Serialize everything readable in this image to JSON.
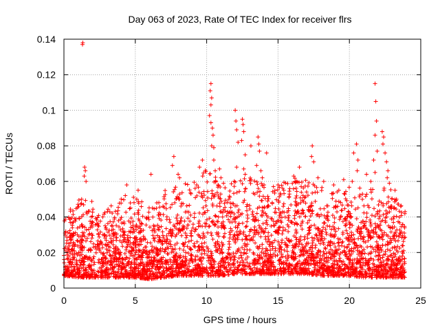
{
  "chart_data": {
    "type": "scatter",
    "title": "Day 063 of 2023, Rate Of TEC Index for receiver flrs",
    "xlabel": "GPS time / hours",
    "ylabel": "ROTI / TECUs",
    "xlim": [
      0,
      25
    ],
    "ylim": [
      0,
      0.14
    ],
    "xticks": [
      0,
      5,
      10,
      15,
      20,
      25
    ],
    "xtick_labels": [
      "0",
      "5",
      "10",
      "15",
      "20",
      "25"
    ],
    "yticks": [
      0,
      0.02,
      0.04,
      0.06,
      0.08,
      0.1,
      0.12,
      0.14
    ],
    "ytick_labels": [
      "0",
      "0.02",
      "0.04",
      "0.06",
      "0.08",
      "0.1",
      "0.12",
      "0.14"
    ],
    "grid": true,
    "marker": "+",
    "color": "#ff0000",
    "series": [
      {
        "name": "ROTI",
        "points": [
          [
            1.3,
            0.137
          ],
          [
            1.32,
            0.138
          ],
          [
            1.45,
            0.068
          ],
          [
            1.5,
            0.066
          ],
          [
            1.42,
            0.063
          ],
          [
            1.55,
            0.06
          ],
          [
            4.4,
            0.058
          ],
          [
            4.3,
            0.052
          ],
          [
            5.2,
            0.055
          ],
          [
            5.1,
            0.05
          ],
          [
            6.1,
            0.064
          ],
          [
            6.2,
            0.045
          ],
          [
            7.7,
            0.074
          ],
          [
            7.6,
            0.069
          ],
          [
            8.0,
            0.064
          ],
          [
            8.1,
            0.062
          ],
          [
            9.5,
            0.068
          ],
          [
            9.7,
            0.072
          ],
          [
            9.3,
            0.058
          ],
          [
            10.3,
            0.115
          ],
          [
            10.25,
            0.111
          ],
          [
            10.35,
            0.107
          ],
          [
            10.3,
            0.103
          ],
          [
            10.2,
            0.097
          ],
          [
            10.3,
            0.093
          ],
          [
            10.4,
            0.09
          ],
          [
            10.45,
            0.086
          ],
          [
            10.35,
            0.08
          ],
          [
            10.5,
            0.079
          ],
          [
            10.5,
            0.072
          ],
          [
            10.6,
            0.066
          ],
          [
            10.9,
            0.067
          ],
          [
            11.0,
            0.062
          ],
          [
            10.8,
            0.058
          ],
          [
            12.0,
            0.1
          ],
          [
            12.05,
            0.094
          ],
          [
            12.1,
            0.089
          ],
          [
            12.2,
            0.082
          ],
          [
            12.5,
            0.095
          ],
          [
            12.55,
            0.092
          ],
          [
            12.6,
            0.088
          ],
          [
            12.45,
            0.083
          ],
          [
            12.7,
            0.075
          ],
          [
            12.1,
            0.068
          ],
          [
            12.6,
            0.067
          ],
          [
            12.7,
            0.064
          ],
          [
            13.1,
            0.08
          ],
          [
            13.6,
            0.085
          ],
          [
            13.65,
            0.081
          ],
          [
            13.7,
            0.077
          ],
          [
            13.5,
            0.069
          ],
          [
            13.8,
            0.066
          ],
          [
            14.2,
            0.076
          ],
          [
            13.9,
            0.062
          ],
          [
            15.0,
            0.058
          ],
          [
            15.4,
            0.055
          ],
          [
            16.1,
            0.063
          ],
          [
            16.5,
            0.068
          ],
          [
            16.3,
            0.06
          ],
          [
            17.4,
            0.08
          ],
          [
            17.35,
            0.074
          ],
          [
            17.5,
            0.071
          ],
          [
            17.8,
            0.062
          ],
          [
            18.2,
            0.06
          ],
          [
            18.9,
            0.058
          ],
          [
            19.6,
            0.061
          ],
          [
            20.2,
            0.06
          ],
          [
            20.3,
            0.076
          ],
          [
            20.5,
            0.081
          ],
          [
            20.6,
            0.072
          ],
          [
            20.55,
            0.066
          ],
          [
            21.2,
            0.064
          ],
          [
            21.5,
            0.06
          ],
          [
            21.8,
            0.115
          ],
          [
            21.85,
            0.105
          ],
          [
            21.9,
            0.094
          ],
          [
            21.8,
            0.086
          ],
          [
            21.95,
            0.077
          ],
          [
            21.7,
            0.072
          ],
          [
            21.8,
            0.065
          ],
          [
            22.3,
            0.088
          ],
          [
            22.4,
            0.085
          ],
          [
            22.35,
            0.081
          ],
          [
            22.5,
            0.076
          ],
          [
            22.6,
            0.071
          ],
          [
            22.7,
            0.066
          ],
          [
            22.65,
            0.062
          ],
          [
            22.8,
            0.059
          ],
          [
            23.2,
            0.055
          ],
          [
            23.3,
            0.05
          ],
          [
            23.6,
            0.046
          ],
          [
            23.9,
            0.043
          ]
        ],
        "bulk_envelope": {
          "x": [
            0,
            1,
            2,
            3,
            4,
            5,
            6,
            7,
            8,
            9,
            10,
            11,
            12,
            13,
            14,
            15,
            16,
            17,
            18,
            19,
            20,
            21,
            22,
            23,
            24
          ],
          "low": [
            0.007,
            0.006,
            0.006,
            0.006,
            0.006,
            0.006,
            0.005,
            0.006,
            0.007,
            0.007,
            0.007,
            0.007,
            0.008,
            0.008,
            0.008,
            0.008,
            0.008,
            0.008,
            0.007,
            0.007,
            0.007,
            0.006,
            0.006,
            0.006,
            0.006
          ],
          "typical_high": [
            0.03,
            0.033,
            0.035,
            0.032,
            0.033,
            0.035,
            0.03,
            0.035,
            0.038,
            0.04,
            0.045,
            0.042,
            0.044,
            0.048,
            0.046,
            0.044,
            0.048,
            0.047,
            0.043,
            0.04,
            0.038,
            0.036,
            0.04,
            0.038,
            0.033
          ],
          "peak": [
            0.04,
            0.05,
            0.05,
            0.045,
            0.05,
            0.052,
            0.045,
            0.055,
            0.058,
            0.06,
            0.068,
            0.06,
            0.062,
            0.065,
            0.06,
            0.058,
            0.062,
            0.062,
            0.058,
            0.054,
            0.058,
            0.056,
            0.06,
            0.055,
            0.045
          ]
        }
      }
    ]
  }
}
